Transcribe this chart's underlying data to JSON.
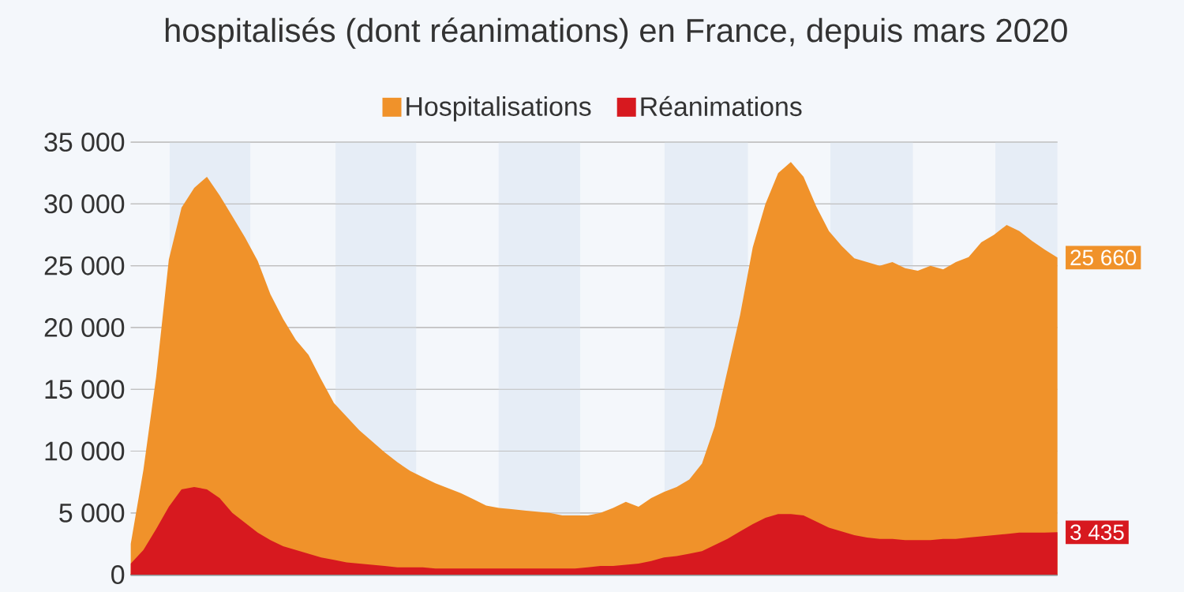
{
  "chart_data": {
    "type": "area",
    "title": "hospitalisés (dont réanimations) en France, depuis mars 2020",
    "categories": [
      null,
      null,
      null,
      null,
      null,
      null,
      null,
      null,
      null,
      null,
      null,
      null,
      null,
      null,
      null,
      null,
      null,
      null,
      null,
      null,
      null,
      null,
      null,
      null,
      null,
      null,
      null,
      null,
      null,
      null,
      null,
      null,
      null,
      null,
      null,
      null,
      null,
      null,
      null,
      null,
      null,
      null,
      null,
      null,
      null,
      null,
      null,
      null,
      null,
      null,
      null,
      null,
      null,
      null,
      null,
      null,
      null,
      null,
      null,
      null,
      null,
      null,
      null,
      null,
      null,
      null,
      null,
      null,
      null,
      null,
      null,
      null,
      null,
      null
    ],
    "series": [
      {
        "name": "Hospitalisations",
        "color": "#f0922a",
        "values": [
          2500,
          8500,
          16000,
          25500,
          29700,
          31300,
          32200,
          30700,
          29000,
          27300,
          25400,
          22700,
          20700,
          19000,
          17800,
          15800,
          13900,
          12800,
          11700,
          10800,
          9900,
          9100,
          8400,
          7900,
          7400,
          7000,
          6600,
          6100,
          5600,
          5400,
          5300,
          5200,
          5100,
          5000,
          4800,
          4800,
          4800,
          5000,
          5400,
          5900,
          5500,
          6200,
          6700,
          7100,
          7700,
          9000,
          12000,
          16500,
          21000,
          26500,
          30000,
          32500,
          33400,
          32200,
          29800,
          27800,
          26600,
          25600,
          25300,
          25000,
          25300,
          24800,
          24600,
          25000,
          24700,
          25300,
          25700,
          26900,
          27500,
          28300,
          27800,
          27000,
          26300,
          25660
        ],
        "value_labels": [
          null,
          null,
          null,
          null,
          null,
          null,
          null,
          null,
          null,
          null,
          null,
          null,
          null,
          null,
          null,
          null,
          null,
          null,
          null,
          null,
          null,
          null,
          null,
          null,
          null,
          null,
          null,
          null,
          null,
          null,
          null,
          null,
          null,
          null,
          null,
          null,
          null,
          null,
          null,
          null,
          null,
          null,
          null,
          null,
          null,
          null,
          null,
          null,
          null,
          null,
          null,
          null,
          null,
          null,
          null,
          null,
          null,
          null,
          null,
          null,
          null,
          null,
          null,
          null,
          null,
          null,
          null,
          null,
          null,
          null,
          null,
          null,
          null,
          "25 660"
        ]
      },
      {
        "name": "Réanimations",
        "color": "#d7191f",
        "values": [
          900,
          2000,
          3700,
          5500,
          6900,
          7100,
          6900,
          6200,
          5000,
          4200,
          3400,
          2800,
          2300,
          2000,
          1700,
          1400,
          1200,
          1000,
          900,
          800,
          700,
          600,
          600,
          600,
          500,
          500,
          500,
          500,
          500,
          500,
          500,
          500,
          500,
          500,
          500,
          500,
          600,
          700,
          700,
          800,
          900,
          1100,
          1400,
          1500,
          1700,
          1900,
          2400,
          2900,
          3500,
          4100,
          4600,
          4900,
          4900,
          4800,
          4300,
          3800,
          3500,
          3200,
          3000,
          2900,
          2900,
          2800,
          2800,
          2800,
          2900,
          2900,
          3000,
          3100,
          3200,
          3300,
          3400,
          3400,
          3400,
          3435
        ],
        "value_labels": [
          null,
          null,
          null,
          null,
          null,
          null,
          null,
          null,
          null,
          null,
          null,
          null,
          null,
          null,
          null,
          null,
          null,
          null,
          null,
          null,
          null,
          null,
          null,
          null,
          null,
          null,
          null,
          null,
          null,
          null,
          null,
          null,
          null,
          null,
          null,
          null,
          null,
          null,
          null,
          null,
          null,
          null,
          null,
          null,
          null,
          null,
          null,
          null,
          null,
          null,
          null,
          null,
          null,
          null,
          null,
          null,
          null,
          null,
          null,
          null,
          null,
          null,
          null,
          null,
          null,
          null,
          null,
          null,
          null,
          null,
          null,
          null,
          null,
          "3 435"
        ]
      }
    ],
    "ylim": [
      0,
      35000
    ],
    "yticks": [
      0,
      {
        "value": 5000,
        "label": "5 000"
      },
      {
        "value": 10000,
        "label": "10 000"
      },
      {
        "value": 15000,
        "label": "15 000"
      },
      {
        "value": 20000,
        "label": "20 000"
      },
      {
        "value": 25000,
        "label": "25 000"
      },
      {
        "value": 30000,
        "label": "30 000"
      },
      {
        "value": 35000,
        "label": "35 000"
      }
    ],
    "grid": "y",
    "legend": "top"
  }
}
